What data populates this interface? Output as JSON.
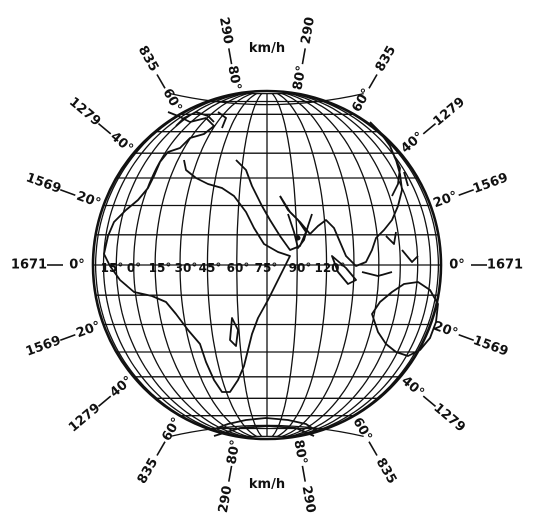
{
  "unit_top": "km/h",
  "unit_bottom": "km/h",
  "latitude_speeds": [
    {
      "lat": "0°",
      "speed": "1671"
    },
    {
      "lat": "20°",
      "speed": "1569"
    },
    {
      "lat": "40°",
      "speed": "1279"
    },
    {
      "lat": "60°",
      "speed": "835"
    },
    {
      "lat": "80°",
      "speed": "290"
    }
  ],
  "longitude_labels": [
    "15°",
    "0°",
    "15°",
    "30°",
    "45°",
    "60°",
    "75°",
    "90°",
    "120°"
  ],
  "colors": {
    "ink": "#111111",
    "background": "#ffffff"
  }
}
